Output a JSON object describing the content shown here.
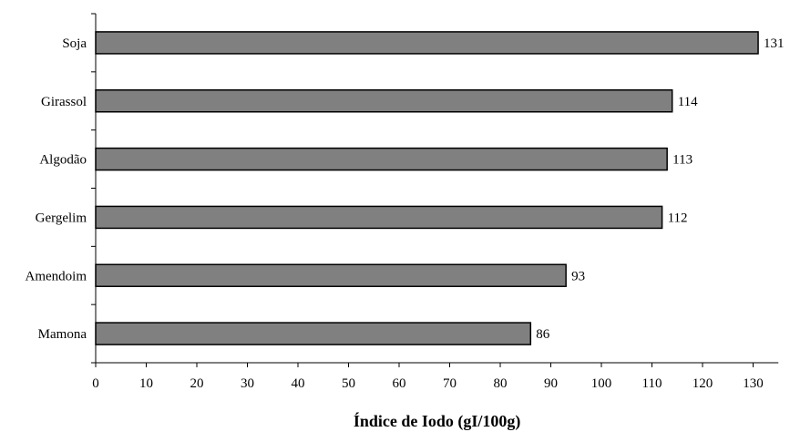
{
  "chart_data": {
    "type": "bar",
    "orientation": "horizontal",
    "categories": [
      "Soja",
      "Girassol",
      "Algodão",
      "Gergelim",
      "Amendoim",
      "Mamona"
    ],
    "values": [
      131,
      114,
      113,
      112,
      93,
      86
    ],
    "data_labels": [
      "131",
      "114",
      "113",
      "112",
      "93",
      "86"
    ],
    "xlabel": "Índice de Iodo (gI/100g)",
    "ylabel": "",
    "xlim": [
      0,
      135
    ],
    "x_ticks": [
      0,
      10,
      20,
      30,
      40,
      50,
      60,
      70,
      80,
      90,
      100,
      110,
      120,
      130
    ],
    "grid": false,
    "legend": "none",
    "bar_color": "#808080",
    "bar_edge_color": "#000000"
  }
}
